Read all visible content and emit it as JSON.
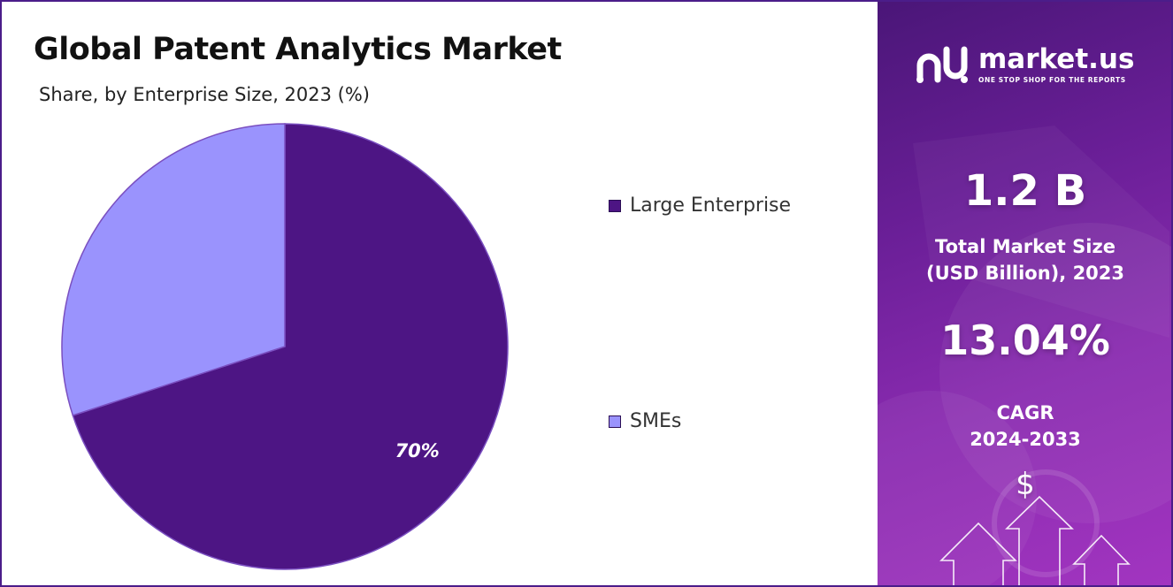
{
  "chart_data": {
    "type": "pie",
    "title": "Global Patent Analytics Market",
    "subtitle": "Share, by Enterprise Size, 2023 (%)",
    "slices": [
      {
        "label": "Large Enterprise",
        "value": 70,
        "color": "#4d1584",
        "data_label": "70%"
      },
      {
        "label": "SMEs",
        "value": 30,
        "color": "#9a93fd",
        "data_label": ""
      }
    ],
    "legend_position": "right"
  },
  "sidebar": {
    "brand_name": "market.us",
    "brand_tagline": "ONE STOP SHOP FOR THE REPORTS",
    "market_size_value": "1.2 B",
    "market_size_label_line1": "Total Market Size",
    "market_size_label_line2": "(USD Billion), 2023",
    "cagr_value": "13.04%",
    "cagr_label_line1": "CAGR",
    "cagr_label_line2": "2024-2033",
    "currency_symbol": "$",
    "logo_icon": "market-us-logo-icon",
    "arrow_icon": "up-arrow-icon"
  }
}
